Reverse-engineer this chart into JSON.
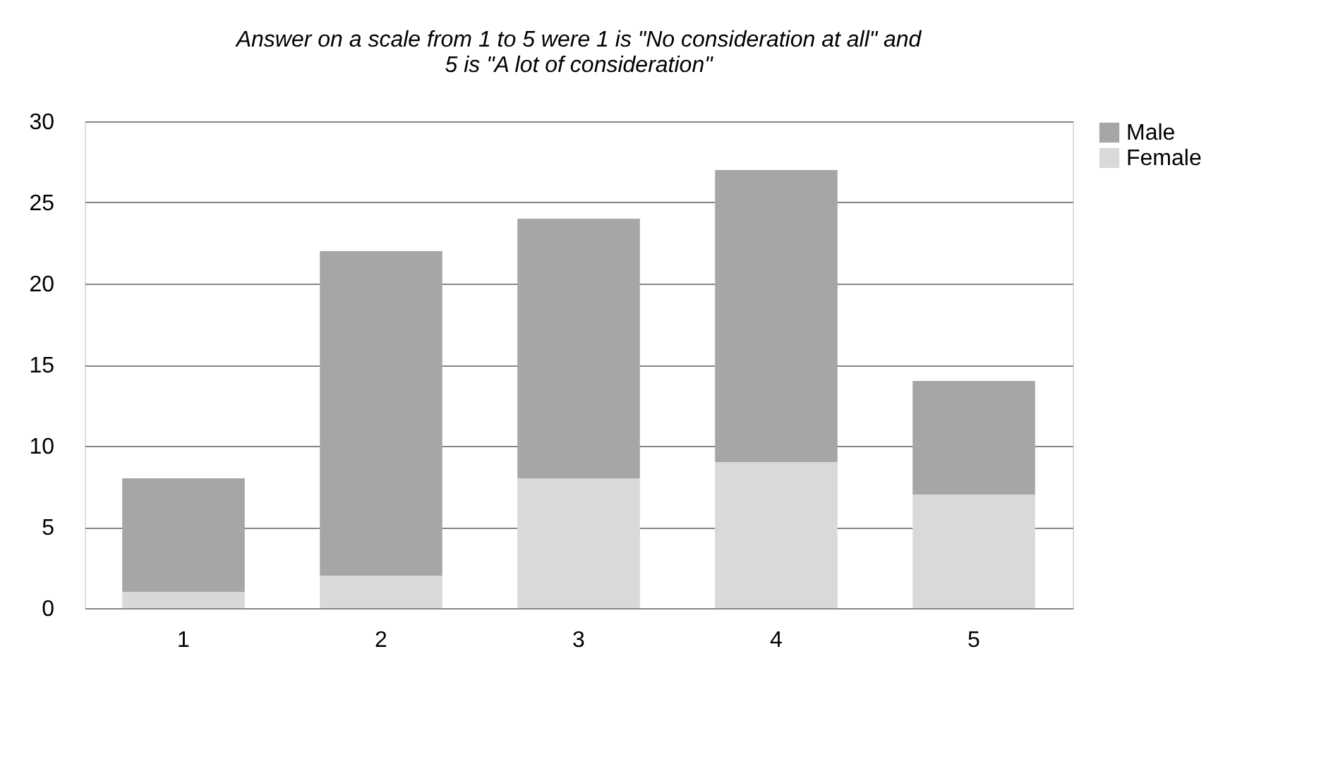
{
  "chart_data": {
    "type": "bar",
    "stacked": true,
    "title": "Answer on a scale from 1 to 5 were 1 is \"No consideration at all\" and\n5 is \"A lot of consideration\"",
    "categories": [
      "1",
      "2",
      "3",
      "4",
      "5"
    ],
    "series": [
      {
        "name": "Female",
        "color": "#d9d9d9",
        "values": [
          1,
          2,
          8,
          9,
          7
        ]
      },
      {
        "name": "Male",
        "color": "#a6a6a6",
        "values": [
          7,
          20,
          16,
          18,
          7
        ]
      }
    ],
    "ylim": [
      0,
      30
    ],
    "yticks": [
      0,
      5,
      10,
      15,
      20,
      25,
      30
    ],
    "grid": "y",
    "legend": "right"
  }
}
